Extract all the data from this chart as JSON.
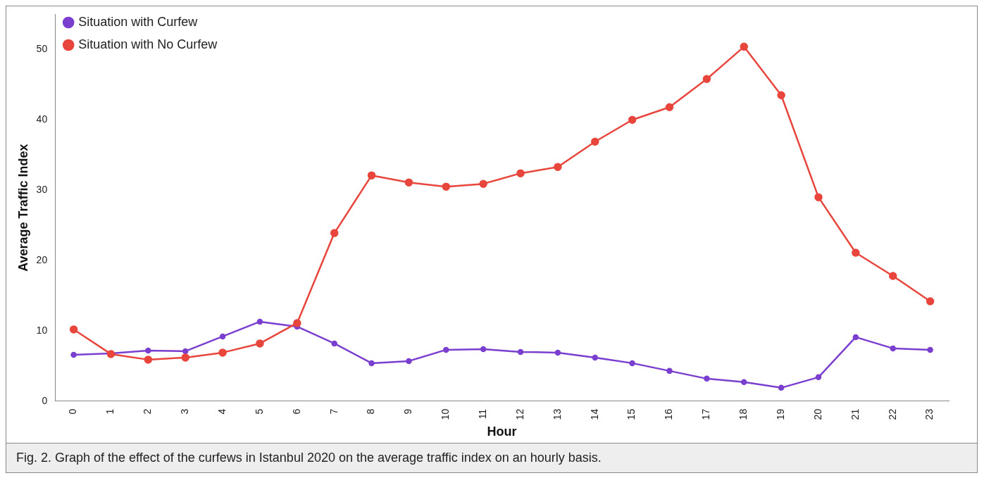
{
  "chart_data": {
    "type": "line",
    "xlabel": "Hour",
    "ylabel": "Average Traffic Index",
    "categories": [
      "0",
      "1",
      "2",
      "3",
      "4",
      "5",
      "6",
      "7",
      "8",
      "9",
      "10",
      "11",
      "12",
      "13",
      "14",
      "15",
      "16",
      "17",
      "18",
      "19",
      "20",
      "21",
      "22",
      "23"
    ],
    "series": [
      {
        "name": "Situation with Curfew",
        "color": "#7b3fd0",
        "values": [
          6.6,
          6.8,
          7.2,
          7.1,
          9.2,
          11.3,
          10.6,
          8.2,
          5.4,
          5.7,
          7.3,
          7.4,
          7.0,
          6.9,
          6.2,
          5.4,
          4.3,
          3.2,
          2.7,
          1.9,
          3.4,
          9.1,
          7.5,
          7.3
        ]
      },
      {
        "name": "Situation with No Curfew",
        "color": "#e8453c",
        "values": [
          10.2,
          6.7,
          5.9,
          6.2,
          6.9,
          8.2,
          11.1,
          23.9,
          32.1,
          31.1,
          30.5,
          30.9,
          32.4,
          33.3,
          36.9,
          40.0,
          41.8,
          45.8,
          50.4,
          43.5,
          29.0,
          21.1,
          17.8,
          14.2
        ]
      }
    ],
    "ylim": [
      0,
      55
    ],
    "yticks": [
      0,
      10,
      20,
      30,
      40,
      50
    ],
    "grid": false,
    "legend": "top left",
    "marker": "circle",
    "line_style": "solid",
    "annotations": [
      "Fig. 2.  Graph of the effect of the curfews in Istanbul 2020 on the average traffic index on an hourly basis."
    ]
  }
}
